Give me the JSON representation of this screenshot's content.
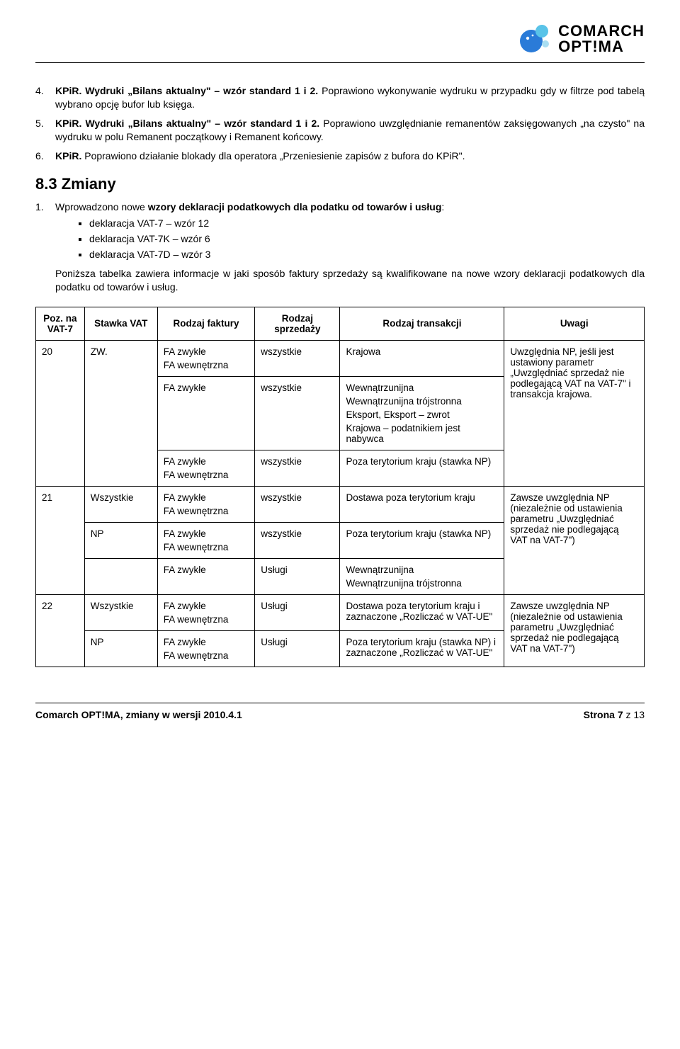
{
  "logo": {
    "brand": "COMARCH",
    "product": "OPT!MA",
    "bubble_colors": [
      "#2a7bd8",
      "#59c3e8",
      "#a9def2"
    ]
  },
  "list4_6": [
    {
      "num": "4.",
      "bold": "KPiR. Wydruki „Bilans aktualny\" – wzór standard 1 i 2.",
      "rest": " Poprawiono wykonywanie wydruku w przypadku gdy w filtrze pod tabelą wybrano opcję bufor lub księga."
    },
    {
      "num": "5.",
      "bold": "KPiR. Wydruki „Bilans aktualny\" – wzór standard 1 i 2.",
      "rest": " Poprawiono uwzględnianie remanentów zaksięgowanych „na czysto\" na wydruku w polu Remanent początkowy i Remanent końcowy."
    },
    {
      "num": "6.",
      "bold": "KPiR.",
      "rest": " Poprawiono działanie blokady dla operatora „Przeniesienie zapisów z bufora do KPiR\"."
    }
  ],
  "section_title": "8.3  Zmiany",
  "zmiany_intro": {
    "num": "1.",
    "lead": "Wprowadzono nowe ",
    "bold": "wzory deklaracji podatkowych dla podatku od towarów i usług",
    "after": ":"
  },
  "bullets": [
    "deklaracja VAT-7 – wzór 12",
    "deklaracja VAT-7K – wzór 6",
    "deklaracja VAT-7D – wzór 3"
  ],
  "zmiany_para": "Poniższa tabelka zawiera informacje w jaki sposób faktury sprzedaży są kwalifikowane na nowe wzory deklaracji podatkowych dla podatku od towarów i usług.",
  "table": {
    "headers": [
      "Poz. na VAT-7",
      "Stawka VAT",
      "Rodzaj faktury",
      "Rodzaj sprzedaży",
      "Rodzaj transakcji",
      "Uwagi"
    ],
    "col_widths": [
      "8%",
      "12%",
      "16%",
      "14%",
      "27%",
      "23%"
    ],
    "rows": [
      {
        "poz": "20",
        "poz_rowspan": 3,
        "stawka": "ZW.",
        "stawka_rowspan": 3,
        "faktura": [
          "FA zwykłe",
          "FA wewnętrzna"
        ],
        "sprzedaz": "wszystkie",
        "transakcja": [
          "Krajowa"
        ],
        "uwagi": "Uwzględnia NP, jeśli jest ustawiony parametr „Uwzględniać sprzedaż nie podlegającą VAT na VAT-7\" i transakcja krajowa.",
        "uwagi_rowspan": 3
      },
      {
        "faktura": [
          "FA zwykłe"
        ],
        "sprzedaz": "wszystkie",
        "transakcja": [
          "Wewnątrzunijna",
          "Wewnątrzunijna trójstronna",
          "Eksport, Eksport – zwrot",
          "Krajowa – podatnikiem jest nabywca"
        ]
      },
      {
        "faktura": [
          "FA zwykłe",
          "FA wewnętrzna"
        ],
        "sprzedaz": "wszystkie",
        "transakcja": [
          "Poza terytorium kraju (stawka NP)"
        ]
      },
      {
        "poz": "21",
        "poz_rowspan": 3,
        "stawka": "Wszystkie",
        "faktura": [
          "FA zwykłe",
          "FA wewnętrzna"
        ],
        "sprzedaz": "wszystkie",
        "transakcja": [
          "Dostawa poza terytorium kraju"
        ],
        "uwagi": "Zawsze uwzględnia NP (niezależnie od ustawienia parametru „Uwzględniać sprzedaż nie podlegającą VAT na VAT-7\")",
        "uwagi_rowspan": 3
      },
      {
        "stawka": "NP",
        "faktura": [
          "FA zwykłe",
          "FA wewnętrzna"
        ],
        "sprzedaz": "wszystkie",
        "transakcja": [
          "Poza terytorium kraju (stawka NP)"
        ]
      },
      {
        "stawka": "",
        "faktura": [
          "FA zwykłe"
        ],
        "sprzedaz": "Usługi",
        "transakcja": [
          "Wewnątrzunijna",
          "Wewnątrzunijna trójstronna"
        ]
      },
      {
        "poz": "22",
        "poz_rowspan": 2,
        "stawka": "Wszystkie",
        "faktura": [
          "FA zwykłe",
          "FA wewnętrzna"
        ],
        "sprzedaz": "Usługi",
        "transakcja": [
          "Dostawa poza terytorium kraju i zaznaczone „Rozliczać w VAT-UE\""
        ],
        "uwagi": "Zawsze uwzględnia NP (niezależnie od ustawienia parametru „Uwzględniać sprzedaż nie podlegającą VAT na VAT-7\")",
        "uwagi_rowspan": 2
      },
      {
        "stawka": "NP",
        "faktura": [
          "FA zwykłe",
          "FA wewnętrzna"
        ],
        "sprzedaz": "Usługi",
        "transakcja": [
          "Poza terytorium kraju (stawka NP) i zaznaczone „Rozliczać w VAT-UE\""
        ]
      }
    ]
  },
  "footer": {
    "left": "Comarch OPT!MA, zmiany w wersji 2010.4.1",
    "right_label": "Strona ",
    "page": "7",
    "of_label": " z ",
    "total": "13"
  }
}
